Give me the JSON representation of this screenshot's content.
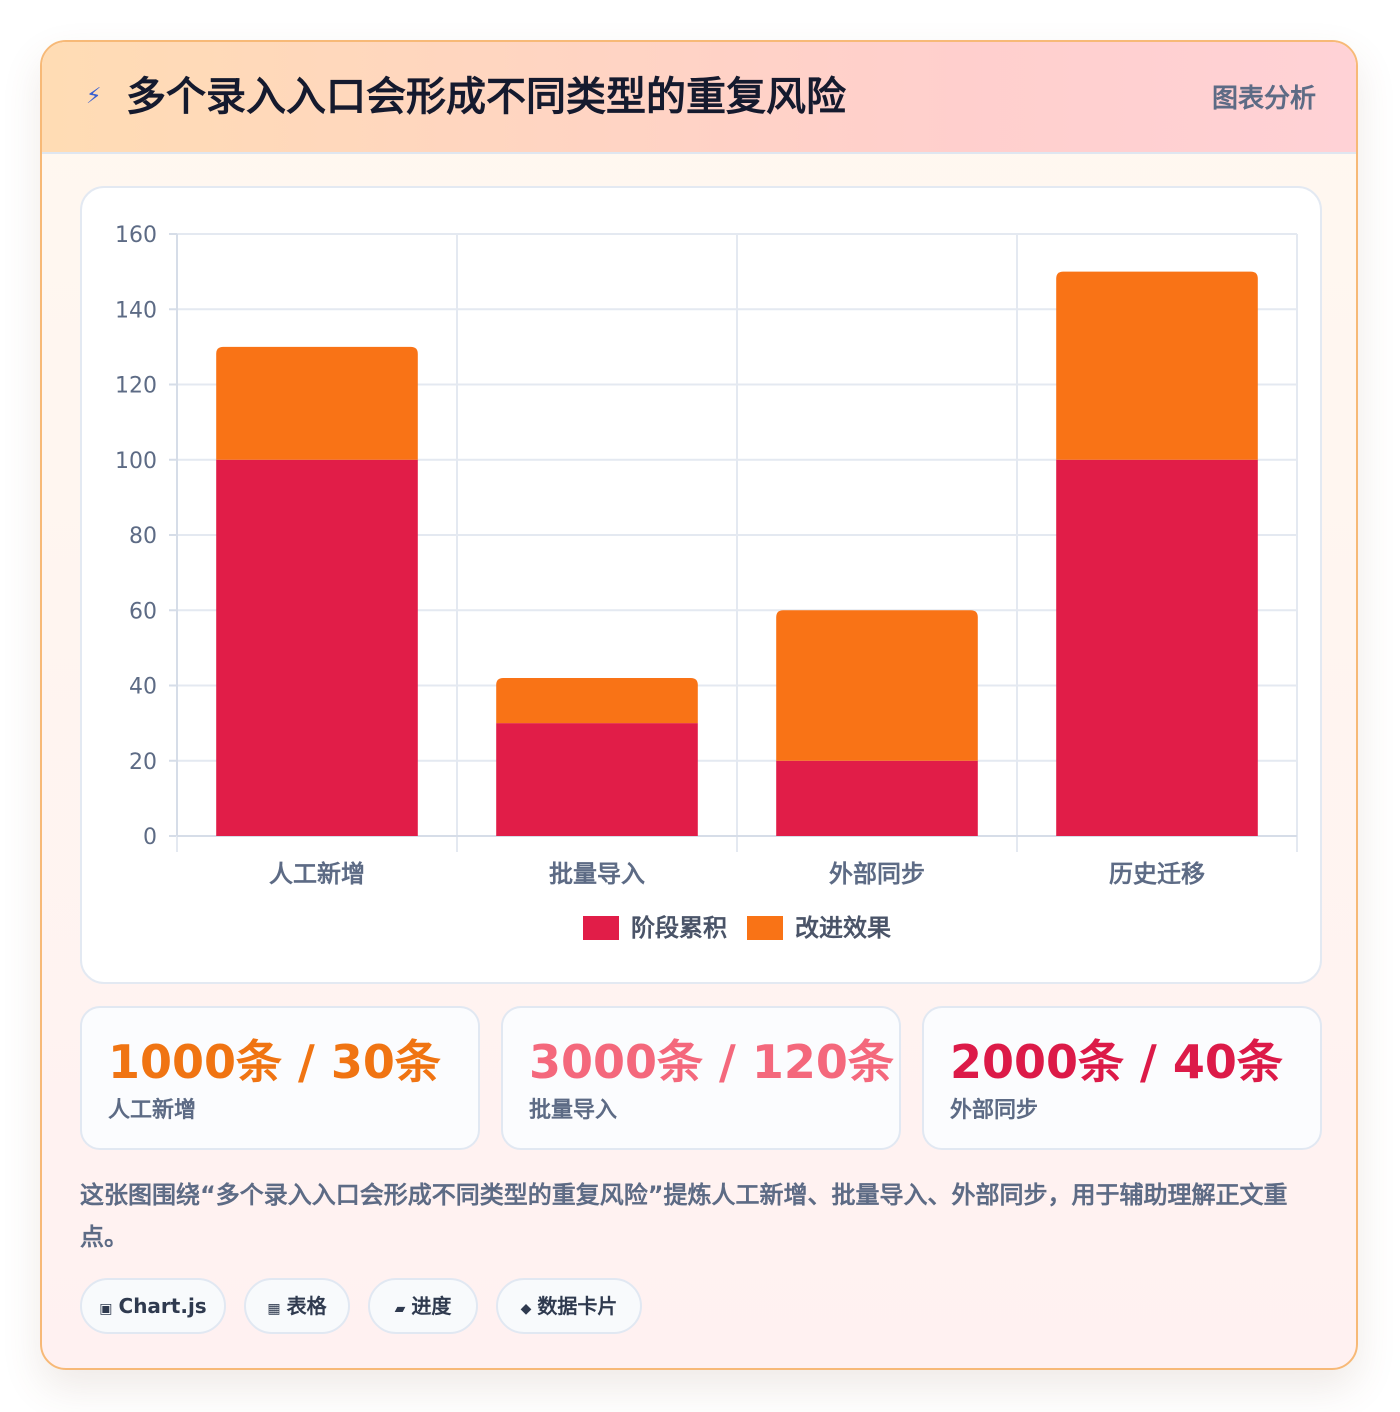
{
  "header": {
    "icon": "lightning-icon",
    "title": "多个录入入口会形成不同类型的重复风险",
    "tag": "图表分析"
  },
  "chart_data": {
    "type": "bar",
    "stacked": true,
    "categories": [
      "人工新增",
      "批量导入",
      "外部同步",
      "历史迁移"
    ],
    "series": [
      {
        "name": "阶段累积",
        "values": [
          100,
          30,
          20,
          100
        ],
        "color": "#e11d48"
      },
      {
        "name": "改进效果",
        "values": [
          30,
          12,
          40,
          50
        ],
        "color": "#f97316"
      }
    ],
    "ylim": [
      0,
      160
    ],
    "yticks": [
      0,
      20,
      40,
      60,
      80,
      100,
      120,
      140,
      160
    ],
    "grid": true,
    "legend": "bottom"
  },
  "stats": [
    {
      "value": "1000条 / 30条",
      "label": "人工新增",
      "color": "#f07412"
    },
    {
      "value": "3000条 / 120条",
      "label": "批量导入",
      "color": "#f4687c"
    },
    {
      "value": "2000条 / 40条",
      "label": "外部同步",
      "color": "#dc1a48"
    }
  ],
  "description": "这张图围绕“多个录入入口会形成不同类型的重复风险”提炼人工新增、批量导入、外部同步，用于辅助理解正文重点。",
  "chips": [
    {
      "icon": "▣",
      "icon_name": "chart-icon",
      "label": "Chart.js"
    },
    {
      "icon": "▦",
      "icon_name": "table-icon",
      "label": "表格"
    },
    {
      "icon": "▰",
      "icon_name": "progress-icon",
      "label": "进度"
    },
    {
      "icon": "◆",
      "icon_name": "card-icon",
      "label": "数据卡片"
    }
  ]
}
